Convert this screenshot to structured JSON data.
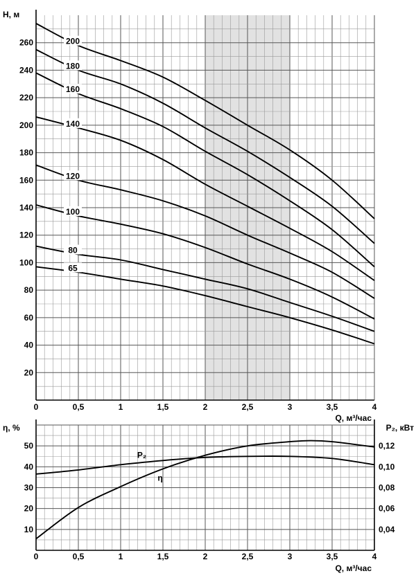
{
  "chart_data": [
    {
      "type": "line",
      "xlabel": "Q, м³/час",
      "ylabel": "H, м",
      "xlim": [
        0,
        4
      ],
      "ylim": [
        0,
        280
      ],
      "x_ticks": [
        "0",
        "0,5",
        "1",
        "1,5",
        "2",
        "2,5",
        "3",
        "3,5",
        "4"
      ],
      "y_ticks": [
        "20",
        "40",
        "60",
        "80",
        "100",
        "120",
        "140",
        "160",
        "180",
        "200",
        "220",
        "240",
        "260"
      ],
      "grid": true,
      "shaded_x_range": [
        2,
        3
      ],
      "series": [
        {
          "name": "200",
          "x": [
            0,
            0.5,
            1,
            1.5,
            2,
            2.5,
            3,
            3.5,
            4
          ],
          "y": [
            274,
            258,
            247,
            235,
            218,
            200,
            182,
            160,
            132
          ]
        },
        {
          "name": "180",
          "x": [
            0,
            0.5,
            1,
            1.5,
            2,
            2.5,
            3,
            3.5,
            4
          ],
          "y": [
            255,
            240,
            230,
            216,
            198,
            181,
            162,
            141,
            114
          ]
        },
        {
          "name": "160",
          "x": [
            0,
            0.5,
            1,
            1.5,
            2,
            2.5,
            3,
            3.5,
            4
          ],
          "y": [
            238,
            223,
            212,
            199,
            181,
            164,
            145,
            124,
            97
          ]
        },
        {
          "name": "140",
          "x": [
            0,
            0.5,
            1,
            1.5,
            2,
            2.5,
            3,
            3.5,
            4
          ],
          "y": [
            206,
            198,
            189,
            175,
            157,
            141,
            125,
            108,
            87
          ]
        },
        {
          "name": "120",
          "x": [
            0,
            0.5,
            1,
            1.5,
            2,
            2.5,
            3,
            3.5,
            4
          ],
          "y": [
            171,
            160,
            153,
            145,
            134,
            120,
            107,
            93,
            74
          ]
        },
        {
          "name": "100",
          "x": [
            0,
            0.5,
            1,
            1.5,
            2,
            2.5,
            3,
            3.5,
            4
          ],
          "y": [
            142,
            134,
            128,
            121,
            111,
            99,
            88,
            75,
            59
          ]
        },
        {
          "name": "80",
          "x": [
            0,
            0.5,
            1,
            1.5,
            2,
            2.5,
            3,
            3.5,
            4
          ],
          "y": [
            112,
            106,
            102,
            95,
            88,
            81,
            71,
            61,
            50
          ]
        },
        {
          "name": "65",
          "x": [
            0,
            0.5,
            1,
            1.5,
            2,
            2.5,
            3,
            3.5,
            4
          ],
          "y": [
            97,
            93,
            88,
            83,
            76,
            68,
            60,
            51,
            41
          ]
        }
      ]
    },
    {
      "type": "line",
      "xlabel": "Q, м³/час",
      "ylabel": "η, %",
      "ylabel_right": "P₂, кВт",
      "xlim": [
        0,
        4
      ],
      "ylim": [
        0,
        60
      ],
      "ylim_right": [
        0.02,
        0.14
      ],
      "x_ticks": [
        "0",
        "0,5",
        "1",
        "1,5",
        "2",
        "2,5",
        "3",
        "3,5",
        "4"
      ],
      "y_ticks": [
        "10",
        "20",
        "30",
        "40",
        "50"
      ],
      "y_ticks_right": [
        "0,04",
        "0,06",
        "0,08",
        "0,10",
        "0,12"
      ],
      "grid": true,
      "series": [
        {
          "name": "η",
          "axis": "left",
          "x": [
            0,
            0.5,
            1,
            1.5,
            2,
            2.5,
            3,
            3.25,
            3.5,
            4
          ],
          "y": [
            5.5,
            20.5,
            30.5,
            39,
            45.5,
            50,
            52,
            52.5,
            52,
            49.5
          ]
        },
        {
          "name": "P₂",
          "axis": "right",
          "x": [
            0,
            0.5,
            1,
            1.5,
            2,
            2.5,
            3,
            3.5,
            4
          ],
          "y": [
            0.093,
            0.097,
            0.102,
            0.106,
            0.109,
            0.11,
            0.11,
            0.108,
            0.102
          ]
        }
      ]
    }
  ]
}
